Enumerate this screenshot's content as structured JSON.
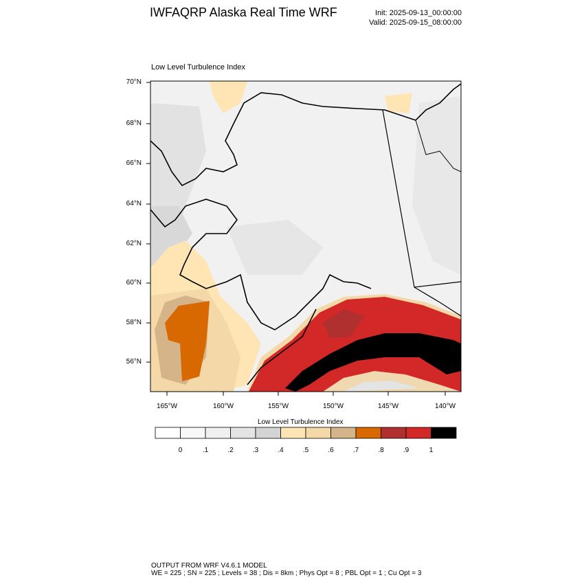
{
  "header": {
    "title": "IWFAQRP Alaska Real Time WRF",
    "init": "Init: 2025-09-13_00:00:00",
    "valid": "Valid: 2025-09-15_08:00:00"
  },
  "plot": {
    "field_label": "Low Level Turbulence Index"
  },
  "chart_data": {
    "type": "heatmap",
    "title": "Low Level Turbulence Index",
    "lat_ticks": [
      "70°N",
      "68°N",
      "66°N",
      "64°N",
      "62°N",
      "60°N",
      "58°N",
      "56°N"
    ],
    "lon_ticks": [
      "165°W",
      "160°W",
      "155°W",
      "150°W",
      "145°W",
      "140°W"
    ],
    "lat_range": [
      54.5,
      70
    ],
    "lon_range": [
      -166.5,
      -138.5
    ],
    "grid": true
  },
  "colorbar": {
    "title": "Low Level Turbulence Index",
    "ticks": [
      "0",
      ".1",
      ".2",
      ".3",
      ".4",
      ".5",
      ".6",
      ".7",
      ".8",
      ".9",
      "1"
    ],
    "colors": [
      "#ffffff",
      "#f8f8f8",
      "#f0f0f0",
      "#e4e4e4",
      "#d4d4d4",
      "#ffe4b4",
      "#f4d8a8",
      "#d6b48a",
      "#d86800",
      "#b03030",
      "#d22828",
      "#000000"
    ]
  },
  "footer": {
    "line1": "OUTPUT FROM WRF V4.6.1 MODEL",
    "line2": "WE = 225 ; SN = 225 ; Levels = 38 ; Dis = 8km ; Phys Opt = 8 ; PBL Opt = 1 ; Cu Opt = 3"
  }
}
